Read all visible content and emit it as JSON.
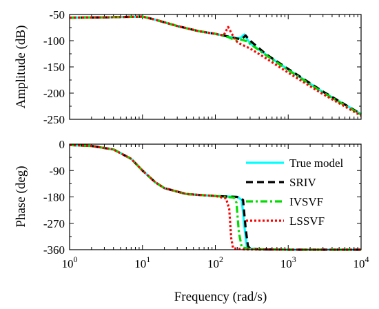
{
  "chart_data": [
    {
      "type": "line",
      "ylabel": "Amplitude (dB)",
      "xlabel": "",
      "xscale": "log",
      "xlim": [
        1,
        10000
      ],
      "ylim": [
        -250,
        -50
      ],
      "yticks": [
        -50,
        -100,
        -150,
        -200,
        -250
      ],
      "grid": false,
      "series": [
        {
          "name": "True model",
          "color": "#00FFFF",
          "dash": "solid",
          "x": [
            1,
            3,
            10,
            15,
            30,
            60,
            100,
            150,
            200,
            220,
            250,
            270,
            300,
            500,
            1000,
            3000,
            10000
          ],
          "y": [
            -56,
            -55.5,
            -54,
            -60,
            -72,
            -82,
            -87,
            -92,
            -95,
            -95,
            -88,
            -96,
            -105,
            -127,
            -155,
            -198,
            -240
          ]
        },
        {
          "name": "SRIV",
          "color": "#000000",
          "dash": "dash",
          "x": [
            1,
            3,
            10,
            15,
            30,
            60,
            100,
            150,
            200,
            230,
            260,
            300,
            500,
            1000,
            3000,
            10000
          ],
          "y": [
            -56,
            -55.5,
            -54,
            -60,
            -72,
            -82,
            -87,
            -92,
            -96,
            -97,
            -90,
            -100,
            -126,
            -154,
            -197,
            -240
          ]
        },
        {
          "name": "IVSVF",
          "color": "#00DD00",
          "dash": "dashdot",
          "x": [
            1,
            3,
            10,
            15,
            30,
            60,
            100,
            150,
            180,
            200,
            230,
            270,
            300,
            500,
            1000,
            3000,
            10000
          ],
          "y": [
            -56,
            -55.5,
            -54,
            -60,
            -72,
            -82,
            -87,
            -93,
            -98,
            -99,
            -98,
            -101,
            -106,
            -128,
            -156,
            -199,
            -241
          ]
        },
        {
          "name": "LSSVF",
          "color": "#FF0000",
          "dash": "dot",
          "x": [
            1,
            3,
            10,
            15,
            30,
            60,
            100,
            130,
            150,
            170,
            190,
            220,
            300,
            500,
            1000,
            3000,
            10000
          ],
          "y": [
            -56,
            -55.5,
            -54,
            -60,
            -72,
            -82,
            -87,
            -90,
            -74,
            -88,
            -100,
            -106,
            -115,
            -134,
            -161,
            -202,
            -243
          ]
        }
      ]
    },
    {
      "type": "line",
      "ylabel": "Phase (deg)",
      "xlabel": "Frequency (rad/s)",
      "xscale": "log",
      "xlim": [
        1,
        10000
      ],
      "xticks": [
        1,
        10,
        100,
        1000,
        10000
      ],
      "xtick_labels": [
        {
          "base": "10",
          "exp": "0"
        },
        {
          "base": "10",
          "exp": "1"
        },
        {
          "base": "10",
          "exp": "2"
        },
        {
          "base": "10",
          "exp": "3"
        },
        {
          "base": "10",
          "exp": "4"
        }
      ],
      "ylim": [
        -360,
        0
      ],
      "yticks": [
        0,
        -90,
        -180,
        -270,
        -360
      ],
      "grid": false,
      "legend": "right",
      "series": [
        {
          "name": "True model",
          "color": "#00FFFF",
          "dash": "solid",
          "x": [
            1,
            2,
            4,
            7,
            10,
            15,
            20,
            40,
            100,
            200,
            230,
            250,
            270,
            300,
            400,
            1000,
            10000
          ],
          "y": [
            -3,
            -6,
            -18,
            -50,
            -90,
            -130,
            -150,
            -170,
            -177,
            -180,
            -190,
            -280,
            -348,
            -356,
            -359,
            -360,
            -360
          ]
        },
        {
          "name": "SRIV",
          "color": "#000000",
          "dash": "dash",
          "x": [
            1,
            2,
            4,
            7,
            10,
            15,
            20,
            40,
            100,
            200,
            240,
            260,
            280,
            300,
            400,
            1000,
            10000
          ],
          "y": [
            -3,
            -6,
            -18,
            -50,
            -90,
            -130,
            -150,
            -170,
            -177,
            -180,
            -190,
            -285,
            -348,
            -356,
            -359,
            -360,
            -360
          ]
        },
        {
          "name": "IVSVF",
          "color": "#00DD00",
          "dash": "dashdot",
          "x": [
            1,
            2,
            4,
            7,
            10,
            15,
            20,
            40,
            100,
            180,
            195,
            210,
            230,
            300,
            1000,
            10000
          ],
          "y": [
            -3,
            -6,
            -18,
            -50,
            -90,
            -130,
            -150,
            -170,
            -177,
            -182,
            -200,
            -300,
            -352,
            -358,
            -360,
            -360
          ]
        },
        {
          "name": "LSSVF",
          "color": "#FF0000",
          "dash": "dot",
          "x": [
            1,
            2,
            4,
            7,
            10,
            15,
            20,
            40,
            100,
            140,
            155,
            165,
            175,
            250,
            1000,
            10000
          ],
          "y": [
            -3,
            -6,
            -18,
            -50,
            -90,
            -130,
            -150,
            -170,
            -177,
            -185,
            -220,
            -320,
            -355,
            -359,
            -360,
            -360
          ]
        }
      ]
    }
  ]
}
